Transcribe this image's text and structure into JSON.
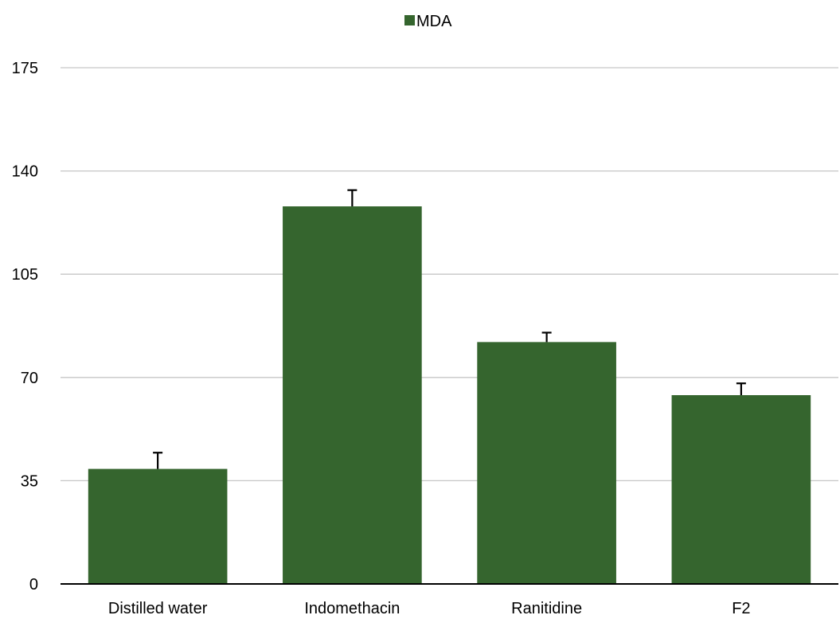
{
  "chart_data": {
    "type": "bar",
    "title": "",
    "xlabel": "",
    "ylabel": "",
    "categories": [
      "Distilled water",
      "Indomethacin",
      "Ranitidine",
      "F2"
    ],
    "series": [
      {
        "name": "MDA",
        "values": [
          39,
          128,
          82,
          64
        ],
        "errors": [
          5.5,
          5.5,
          3.2,
          4
        ]
      }
    ],
    "ylim": [
      0,
      175
    ],
    "yticks": [
      "0",
      "35",
      "70",
      "105",
      "140",
      "175"
    ],
    "grid": true,
    "legend_position": "top-center",
    "colors": {
      "bar": "#35652e",
      "grid": "#c6c6c6",
      "axis": "#000000",
      "error_bar": "#000000"
    }
  }
}
